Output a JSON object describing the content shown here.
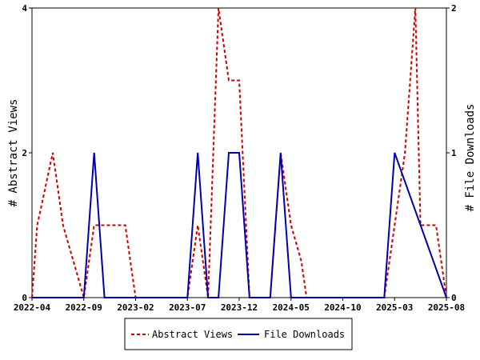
{
  "chart_data": {
    "type": "line",
    "x_ticks": [
      "2022-04",
      "2022-09",
      "2023-02",
      "2023-07",
      "2023-12",
      "2024-05",
      "2024-10",
      "2025-03",
      "2025-08"
    ],
    "xlim": [
      0,
      40
    ],
    "y_left": {
      "label": "# Abstract Views",
      "ticks": [
        "0",
        "2",
        "4"
      ],
      "lim": [
        0,
        4
      ]
    },
    "y_right": {
      "label": "# File Downloads",
      "ticks": [
        "0",
        "1",
        "2"
      ],
      "lim": [
        0,
        2
      ]
    },
    "grid": false,
    "legend_position": "bottom",
    "series": [
      {
        "name": "Abstract Views",
        "color": "#cc0000",
        "style": "dashed",
        "axis": "left",
        "x": [
          0,
          0.5,
          1,
          2,
          2.5,
          3,
          4,
          5,
          6,
          7,
          8,
          9,
          9.5,
          10,
          15,
          16,
          16.5,
          17,
          18,
          19,
          20,
          21,
          23,
          24,
          25,
          26,
          26.5,
          27,
          28,
          34,
          35,
          36,
          37,
          37.5,
          38,
          39,
          40
        ],
        "values": [
          0,
          1,
          1.33,
          2,
          1.5,
          1,
          0.5,
          0,
          1,
          1,
          1,
          1,
          0.5,
          0,
          0,
          1,
          0.5,
          0,
          4,
          3,
          3,
          0,
          0,
          2,
          1,
          0.5,
          0,
          0,
          0,
          0,
          1,
          2,
          4,
          1,
          1,
          1,
          0
        ]
      },
      {
        "name": "File Downloads",
        "color": "#0000aa",
        "style": "solid",
        "axis": "right",
        "x": [
          0,
          4,
          5,
          6,
          7,
          14,
          15,
          16,
          17,
          18,
          19,
          20,
          21,
          23,
          24,
          25,
          33,
          34,
          35,
          40
        ],
        "values": [
          0,
          0,
          0,
          1,
          0,
          0,
          0,
          1,
          0,
          0,
          1,
          1,
          0,
          0,
          1,
          0,
          0,
          0,
          1,
          0
        ]
      }
    ]
  }
}
